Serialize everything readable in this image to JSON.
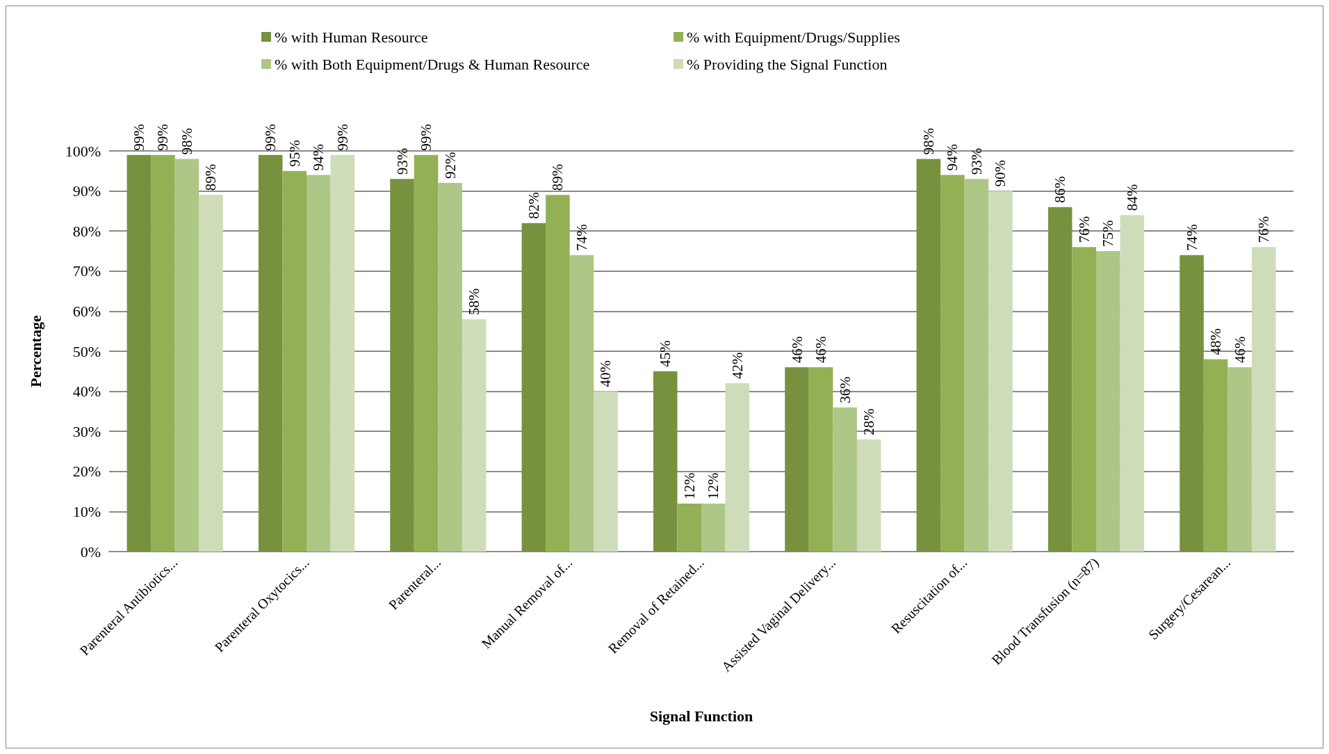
{
  "chart_data": {
    "type": "bar",
    "xlabel": "Signal Function",
    "ylabel": "Percentage",
    "categories": [
      "Parenteral Antibiotics...",
      "Parenteral Oxytocics...",
      "Parenteral...",
      "Manual Removal of...",
      "Removal of Retained...",
      "Assisted Vaginal Delivery...",
      "Resuscitation of...",
      "Blood Transfusion (n=87)",
      "Surgery/Cesarean..."
    ],
    "series": [
      {
        "name": "% with Human Resource",
        "color": "#78913f",
        "values": [
          99,
          99,
          93,
          82,
          45,
          46,
          98,
          86,
          74
        ],
        "value_labels": [
          "99%",
          "99%",
          "93%",
          "82%",
          "45%",
          "46%",
          "98%",
          "86%",
          "74%"
        ]
      },
      {
        "name": "% with Equipment/Drugs/Supplies",
        "color": "#93b055",
        "values": [
          99,
          95,
          99,
          89,
          12,
          46,
          94,
          76,
          48
        ],
        "value_labels": [
          "99%",
          "95%",
          "99%",
          "89%",
          "12%",
          "46%",
          "94%",
          "76%",
          "48%"
        ]
      },
      {
        "name": "% with Both Equipment/Drugs & Human Resource",
        "color": "#aec686",
        "values": [
          98,
          94,
          92,
          74,
          12,
          36,
          93,
          75,
          46
        ],
        "value_labels": [
          "98%",
          "94%",
          "92%",
          "74%",
          "12%",
          "36%",
          "93%",
          "75%",
          "46%"
        ]
      },
      {
        "name": "% Providing the Signal Function",
        "color": "#cfdcb9",
        "values": [
          89,
          99,
          58,
          40,
          42,
          28,
          90,
          84,
          76
        ],
        "value_labels": [
          "89%",
          "99%",
          "58%",
          "40%",
          "42%",
          "28%",
          "90%",
          "84%",
          "76%"
        ]
      }
    ],
    "ylim": [
      0,
      100
    ],
    "yticks": [
      {
        "value": 0,
        "label": "0%"
      },
      {
        "value": 10,
        "label": "10%"
      },
      {
        "value": 20,
        "label": "20%"
      },
      {
        "value": 30,
        "label": "30%"
      },
      {
        "value": 40,
        "label": "40%"
      },
      {
        "value": 50,
        "label": "50%"
      },
      {
        "value": 60,
        "label": "60%"
      },
      {
        "value": 70,
        "label": "70%"
      },
      {
        "value": 80,
        "label": "80%"
      },
      {
        "value": 90,
        "label": "90%"
      },
      {
        "value": 100,
        "label": "100%"
      }
    ],
    "grid": "y",
    "legend": "top"
  }
}
